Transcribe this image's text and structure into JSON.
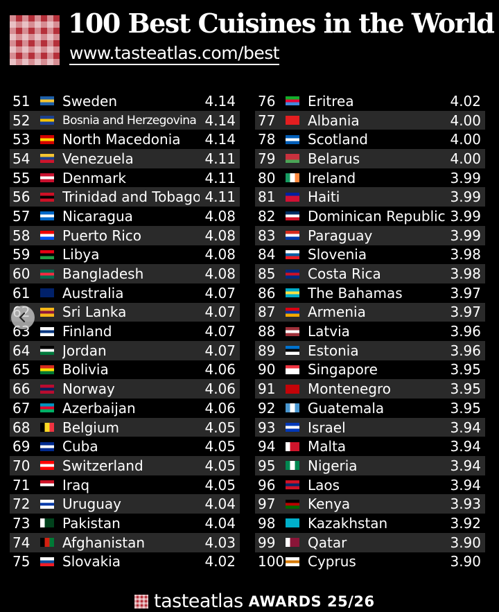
{
  "header": {
    "title": "100 Best Cuisines in the World",
    "url": "www.tasteatlas.com/best"
  },
  "footer": {
    "brand": "tasteatlas",
    "awards": "AWARDS 25/26"
  },
  "icons": {
    "back": "chevron-left-icon"
  },
  "rankings": [
    {
      "rank": "51",
      "country": "Sweden",
      "score": "4.14",
      "flag": [
        "#1e5fa8",
        "#f4c430",
        "#1e5fa8"
      ]
    },
    {
      "rank": "52",
      "country": "Bosnia and Herzegovina",
      "score": "4.14",
      "flag": [
        "#1a3f8f",
        "#f3c300",
        "#1a3f8f"
      ]
    },
    {
      "rank": "53",
      "country": "North Macedonia",
      "score": "4.14",
      "flag": [
        "#d20000",
        "#ffd700",
        "#d20000"
      ]
    },
    {
      "rank": "54",
      "country": "Venezuela",
      "score": "4.11",
      "flag": [
        "#f4c430",
        "#1a3f8f",
        "#cf142b"
      ]
    },
    {
      "rank": "55",
      "country": "Denmark",
      "score": "4.11",
      "flag": [
        "#c8102e",
        "#ffffff",
        "#c8102e"
      ]
    },
    {
      "rank": "56",
      "country": "Trinidad and Tobago",
      "score": "4.11",
      "flag": [
        "#ce1126",
        "#000000",
        "#ce1126"
      ]
    },
    {
      "rank": "57",
      "country": "Nicaragua",
      "score": "4.08",
      "flag": [
        "#0067c6",
        "#ffffff",
        "#0067c6"
      ]
    },
    {
      "rank": "58",
      "country": "Puerto Rico",
      "score": "4.08",
      "flag": [
        "#ed0000",
        "#ffffff",
        "#0050f0"
      ]
    },
    {
      "rank": "59",
      "country": "Libya",
      "score": "4.08",
      "flag": [
        "#e70013",
        "#000000",
        "#239e46"
      ]
    },
    {
      "rank": "60",
      "country": "Bangladesh",
      "score": "4.08",
      "flag": [
        "#006a4e",
        "#f42a41",
        "#006a4e"
      ]
    },
    {
      "rank": "61",
      "country": "Australia",
      "score": "4.07",
      "flag": [
        "#012169",
        "#012169",
        "#012169"
      ]
    },
    {
      "rank": "62",
      "country": "Sri Lanka",
      "score": "4.07",
      "flag": [
        "#f7b718",
        "#8d153a",
        "#f7b718"
      ]
    },
    {
      "rank": "63",
      "country": "Finland",
      "score": "4.07",
      "flag": [
        "#ffffff",
        "#003580",
        "#ffffff"
      ]
    },
    {
      "rank": "64",
      "country": "Jordan",
      "score": "4.07",
      "flag": [
        "#000000",
        "#ffffff",
        "#007a3d"
      ]
    },
    {
      "rank": "65",
      "country": "Bolivia",
      "score": "4.06",
      "flag": [
        "#d52b1e",
        "#f9e300",
        "#007934"
      ]
    },
    {
      "rank": "66",
      "country": "Norway",
      "score": "4.06",
      "flag": [
        "#ba0c2f",
        "#00205b",
        "#ba0c2f"
      ]
    },
    {
      "rank": "67",
      "country": "Azerbaijan",
      "score": "4.06",
      "flag": [
        "#0092bc",
        "#e4002b",
        "#00af66"
      ]
    },
    {
      "rank": "68",
      "country": "Belgium",
      "score": "4.05",
      "flag": [
        "#000000",
        "#fdda24",
        "#ef3340"
      ],
      "vertical": true
    },
    {
      "rank": "69",
      "country": "Cuba",
      "score": "4.05",
      "flag": [
        "#002a8f",
        "#ffffff",
        "#002a8f"
      ]
    },
    {
      "rank": "70",
      "country": "Switzerland",
      "score": "4.05",
      "flag": [
        "#ff0000",
        "#ffffff",
        "#ff0000"
      ]
    },
    {
      "rank": "71",
      "country": "Iraq",
      "score": "4.05",
      "flag": [
        "#ce1126",
        "#ffffff",
        "#000000"
      ]
    },
    {
      "rank": "72",
      "country": "Uruguay",
      "score": "4.04",
      "flag": [
        "#ffffff",
        "#0038a8",
        "#ffffff"
      ]
    },
    {
      "rank": "73",
      "country": "Pakistan",
      "score": "4.04",
      "flag": [
        "#ffffff",
        "#01411c",
        "#01411c"
      ],
      "vertical": true
    },
    {
      "rank": "74",
      "country": "Afghanistan",
      "score": "4.03",
      "flag": [
        "#000000",
        "#d32011",
        "#007a36"
      ],
      "vertical": true
    },
    {
      "rank": "75",
      "country": "Slovakia",
      "score": "4.02",
      "flag": [
        "#ffffff",
        "#0b4ea2",
        "#ee1c25"
      ]
    },
    {
      "rank": "76",
      "country": "Eritrea",
      "score": "4.02",
      "flag": [
        "#12ad2b",
        "#ea0437",
        "#4189dd"
      ]
    },
    {
      "rank": "77",
      "country": "Albania",
      "score": "4.00",
      "flag": [
        "#e41e20",
        "#e41e20",
        "#e41e20"
      ]
    },
    {
      "rank": "78",
      "country": "Scotland",
      "score": "4.00",
      "flag": [
        "#005eb8",
        "#ffffff",
        "#005eb8"
      ]
    },
    {
      "rank": "79",
      "country": "Belarus",
      "score": "4.00",
      "flag": [
        "#c8313e",
        "#c8313e",
        "#4aa657"
      ]
    },
    {
      "rank": "80",
      "country": "Ireland",
      "score": "3.99",
      "flag": [
        "#169b62",
        "#ffffff",
        "#ff883e"
      ],
      "vertical": true
    },
    {
      "rank": "81",
      "country": "Haiti",
      "score": "3.99",
      "flag": [
        "#00209f",
        "#d21034",
        "#d21034"
      ]
    },
    {
      "rank": "82",
      "country": "Dominican Republic",
      "score": "3.99",
      "flag": [
        "#002d62",
        "#ffffff",
        "#ce1126"
      ]
    },
    {
      "rank": "83",
      "country": "Paraguay",
      "score": "3.99",
      "flag": [
        "#d52b1e",
        "#ffffff",
        "#0038a8"
      ]
    },
    {
      "rank": "84",
      "country": "Slovenia",
      "score": "3.98",
      "flag": [
        "#ffffff",
        "#005da4",
        "#ed1c24"
      ]
    },
    {
      "rank": "85",
      "country": "Costa Rica",
      "score": "3.98",
      "flag": [
        "#002b7f",
        "#ce1126",
        "#002b7f"
      ]
    },
    {
      "rank": "86",
      "country": "The Bahamas",
      "score": "3.97",
      "flag": [
        "#00abc9",
        "#fae042",
        "#00abc9"
      ]
    },
    {
      "rank": "87",
      "country": "Armenia",
      "score": "3.97",
      "flag": [
        "#d90012",
        "#0033a0",
        "#f2a800"
      ]
    },
    {
      "rank": "88",
      "country": "Latvia",
      "score": "3.96",
      "flag": [
        "#9e3039",
        "#ffffff",
        "#9e3039"
      ]
    },
    {
      "rank": "89",
      "country": "Estonia",
      "score": "3.96",
      "flag": [
        "#0072ce",
        "#000000",
        "#ffffff"
      ]
    },
    {
      "rank": "90",
      "country": "Singapore",
      "score": "3.95",
      "flag": [
        "#ef3340",
        "#ffffff",
        "#ffffff"
      ]
    },
    {
      "rank": "91",
      "country": "Montenegro",
      "score": "3.95",
      "flag": [
        "#c40308",
        "#c40308",
        "#c40308"
      ]
    },
    {
      "rank": "92",
      "country": "Guatemala",
      "score": "3.95",
      "flag": [
        "#4997d0",
        "#ffffff",
        "#4997d0"
      ],
      "vertical": true
    },
    {
      "rank": "93",
      "country": "Israel",
      "score": "3.94",
      "flag": [
        "#0038b8",
        "#ffffff",
        "#0038b8"
      ]
    },
    {
      "rank": "94",
      "country": "Malta",
      "score": "3.94",
      "flag": [
        "#ffffff",
        "#cf142b",
        "#cf142b"
      ],
      "vertical": true
    },
    {
      "rank": "95",
      "country": "Nigeria",
      "score": "3.94",
      "flag": [
        "#008751",
        "#ffffff",
        "#008751"
      ],
      "vertical": true
    },
    {
      "rank": "96",
      "country": "Laos",
      "score": "3.94",
      "flag": [
        "#ce1126",
        "#002868",
        "#ce1126"
      ]
    },
    {
      "rank": "97",
      "country": "Kenya",
      "score": "3.93",
      "flag": [
        "#000000",
        "#bb0000",
        "#006600"
      ]
    },
    {
      "rank": "98",
      "country": "Kazakhstan",
      "score": "3.92",
      "flag": [
        "#00afca",
        "#00afca",
        "#00afca"
      ]
    },
    {
      "rank": "99",
      "country": "Qatar",
      "score": "3.90",
      "flag": [
        "#ffffff",
        "#8a1538",
        "#8a1538"
      ],
      "vertical": true
    },
    {
      "rank": "100",
      "country": "Cyprus",
      "score": "3.90",
      "flag": [
        "#ffffff",
        "#d57800",
        "#ffffff"
      ]
    }
  ]
}
